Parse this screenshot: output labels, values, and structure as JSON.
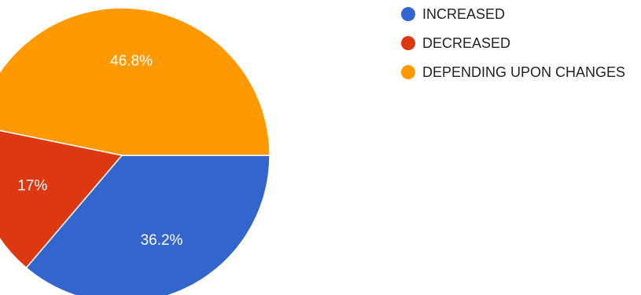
{
  "chart_data": {
    "type": "pie",
    "slices": [
      {
        "label": "INCREASED",
        "value": 36.2,
        "value_label": "36.2%",
        "color": "#3366cc"
      },
      {
        "label": "DECREASED",
        "value": 17.0,
        "value_label": "17%",
        "color": "#dc3912"
      },
      {
        "label": "DEPENDING UPON CHANGES",
        "value": 46.8,
        "value_label": "46.8%",
        "color": "#ff9900"
      }
    ],
    "legend_position": "right"
  }
}
